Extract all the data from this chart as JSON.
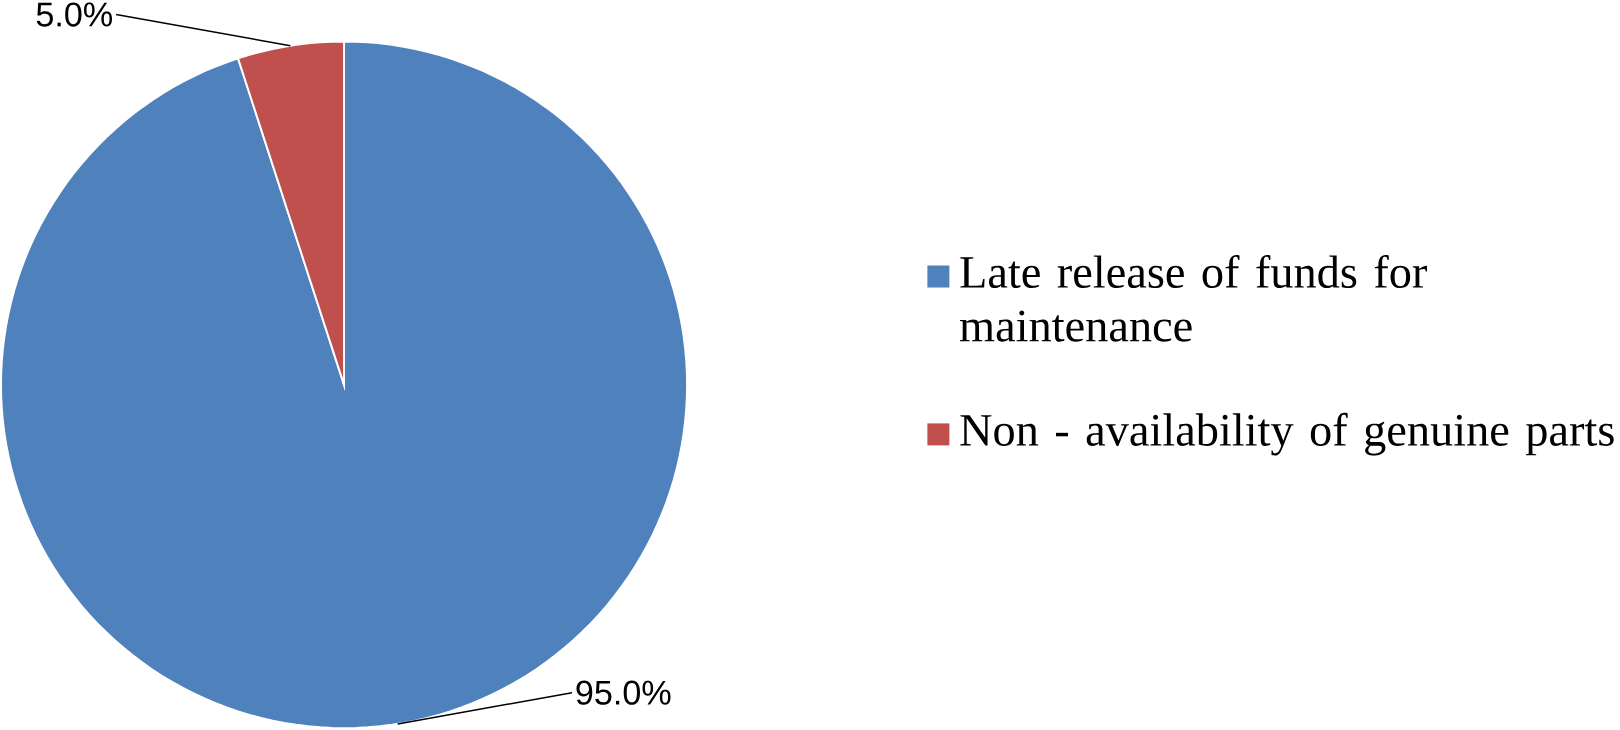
{
  "chart_data": {
    "type": "pie",
    "categories": [
      "Late release of funds for maintenance",
      "Non - availability of genuine parts"
    ],
    "values": [
      95,
      5
    ],
    "colors": [
      "#4f81bd",
      "#c0504d"
    ],
    "value_labels": [
      "95.0%",
      "5.0%"
    ],
    "legend": "right"
  }
}
